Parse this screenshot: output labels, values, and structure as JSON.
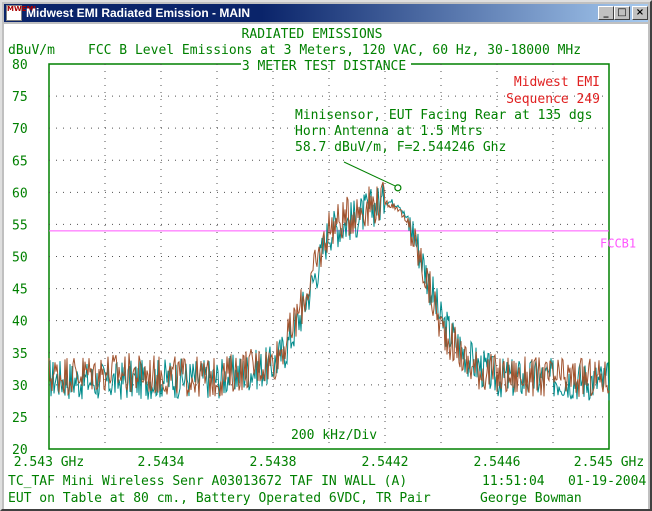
{
  "window": {
    "title": "Midwest EMI Radiated Emission - MAIN",
    "icon_text": "MWEMI",
    "buttons": {
      "minimize": "_",
      "maximize": "□",
      "close": "×"
    }
  },
  "header": {
    "title": "RADIATED EMISSIONS",
    "subtitle": "FCC B Level Emissions at 3 Meters, 120 VAC, 60 Hz, 30-18000 MHz",
    "distance": "3 METER TEST DISTANCE",
    "unit_label": "dBuV/m"
  },
  "annotations": {
    "company": "Midwest EMI",
    "sequence": "Sequence 249",
    "note_lines": [
      "Minisensor, EUT Facing Rear at 135 dgs",
      "Horn Antenna at 1.5 Mtrs",
      "58.7 dBuV/m, F=2.544246 Ghz"
    ],
    "limit_label": "FCCB1",
    "div_label": "200 kHz/Div"
  },
  "footer": {
    "line1_left": "TC_TAF Mini Wireless Senr  A03013672 TAF IN WALL (A)",
    "time": "11:51:04",
    "date": "01-19-2004",
    "line2_left": "EUT on Table at 80 cm., Battery Operated 6VDC, TR Pair",
    "operator": "George Bowman"
  },
  "colors": {
    "title_text": "#008000",
    "axis_text": "#008000",
    "company_text": "#e02020",
    "limit_line": "#ff55ff",
    "trace_1": "#008b8b",
    "trace_2": "#a0522d",
    "peak_text": "#008000"
  },
  "chart_data": {
    "type": "line",
    "title": "RADIATED EMISSIONS",
    "ylabel": "dBuV/m",
    "xlabel": "200 kHz/Div",
    "ylim": [
      20,
      80
    ],
    "xlim": [
      2.543,
      2.545
    ],
    "y_ticks": [
      "80",
      "75",
      "70",
      "65",
      "60",
      "55",
      "50",
      "45",
      "40",
      "35",
      "30",
      "25",
      "20"
    ],
    "x_tick_labels": [
      "2.543 GHz",
      "2.5434",
      "2.5438",
      "2.5442",
      "2.5446",
      "2.545 GHz"
    ],
    "x_tick_values": [
      2.543,
      2.5434,
      2.5438,
      2.5442,
      2.5446,
      2.545
    ],
    "grid": true,
    "limit": {
      "name": "FCCB1",
      "value": 54
    },
    "peak_marker": {
      "x": 2.544246,
      "y": 60.7
    },
    "series": [
      {
        "color": "#008b8b",
        "x": [
          2.543,
          2.5432,
          2.5434,
          2.5436,
          2.5437,
          2.5438,
          2.54385,
          2.5439,
          2.54395,
          2.544,
          2.5441,
          2.54415,
          2.5442,
          2.54425,
          2.5443,
          2.54435,
          2.5444,
          2.5445,
          2.5446,
          2.5448,
          2.545
        ],
        "y": [
          31,
          30.5,
          31,
          31,
          32,
          33,
          36,
          41,
          47,
          54,
          56,
          57.5,
          58.7,
          58.2,
          54,
          47,
          40,
          34,
          31,
          31,
          30.5
        ]
      },
      {
        "color": "#a0522d",
        "x": [
          2.543,
          2.5432,
          2.5434,
          2.5436,
          2.5437,
          2.5438,
          2.54385,
          2.5439,
          2.54395,
          2.544,
          2.5441,
          2.54415,
          2.5442,
          2.54425,
          2.5443,
          2.54435,
          2.5444,
          2.5445,
          2.5446,
          2.5448,
          2.545
        ],
        "y": [
          31.5,
          32,
          31.5,
          31,
          32.5,
          33.5,
          37,
          42,
          48,
          54.5,
          57,
          58.2,
          58.5,
          57.5,
          53,
          46,
          39,
          33,
          31.5,
          31,
          31
        ]
      }
    ]
  }
}
